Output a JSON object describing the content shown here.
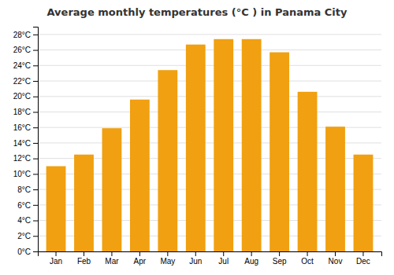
{
  "chart_data": {
    "type": "bar",
    "title": "Average monthly temperatures (°C ) in Panama City",
    "categories": [
      "Jan",
      "Feb",
      "Mar",
      "Apr",
      "May",
      "Jun",
      "Jul",
      "Aug",
      "Sep",
      "Oct",
      "Nov",
      "Dec"
    ],
    "values": [
      11,
      12.5,
      15.9,
      19.6,
      23.4,
      26.7,
      27.4,
      27.4,
      25.7,
      20.6,
      16.1,
      12.5
    ],
    "color": "#F0A010",
    "ylim": [
      0,
      29
    ],
    "yticks": [
      {
        "value": 0,
        "label": "0°C"
      },
      {
        "value": 2,
        "label": "2°C"
      },
      {
        "value": 4,
        "label": "4°C"
      },
      {
        "value": 6,
        "label": "6°C"
      },
      {
        "value": 8,
        "label": "8°C"
      },
      {
        "value": 10,
        "label": "10°C"
      },
      {
        "value": 12,
        "label": "12°C"
      },
      {
        "value": 14,
        "label": "14°C"
      },
      {
        "value": 16,
        "label": "16°C"
      },
      {
        "value": 18,
        "label": "18°C"
      },
      {
        "value": 20,
        "label": "20°C"
      },
      {
        "value": 22,
        "label": "22°C"
      },
      {
        "value": 24,
        "label": "24°C"
      },
      {
        "value": 26,
        "label": "26°C"
      },
      {
        "value": 28,
        "label": "28°C"
      }
    ],
    "grid": true
  }
}
